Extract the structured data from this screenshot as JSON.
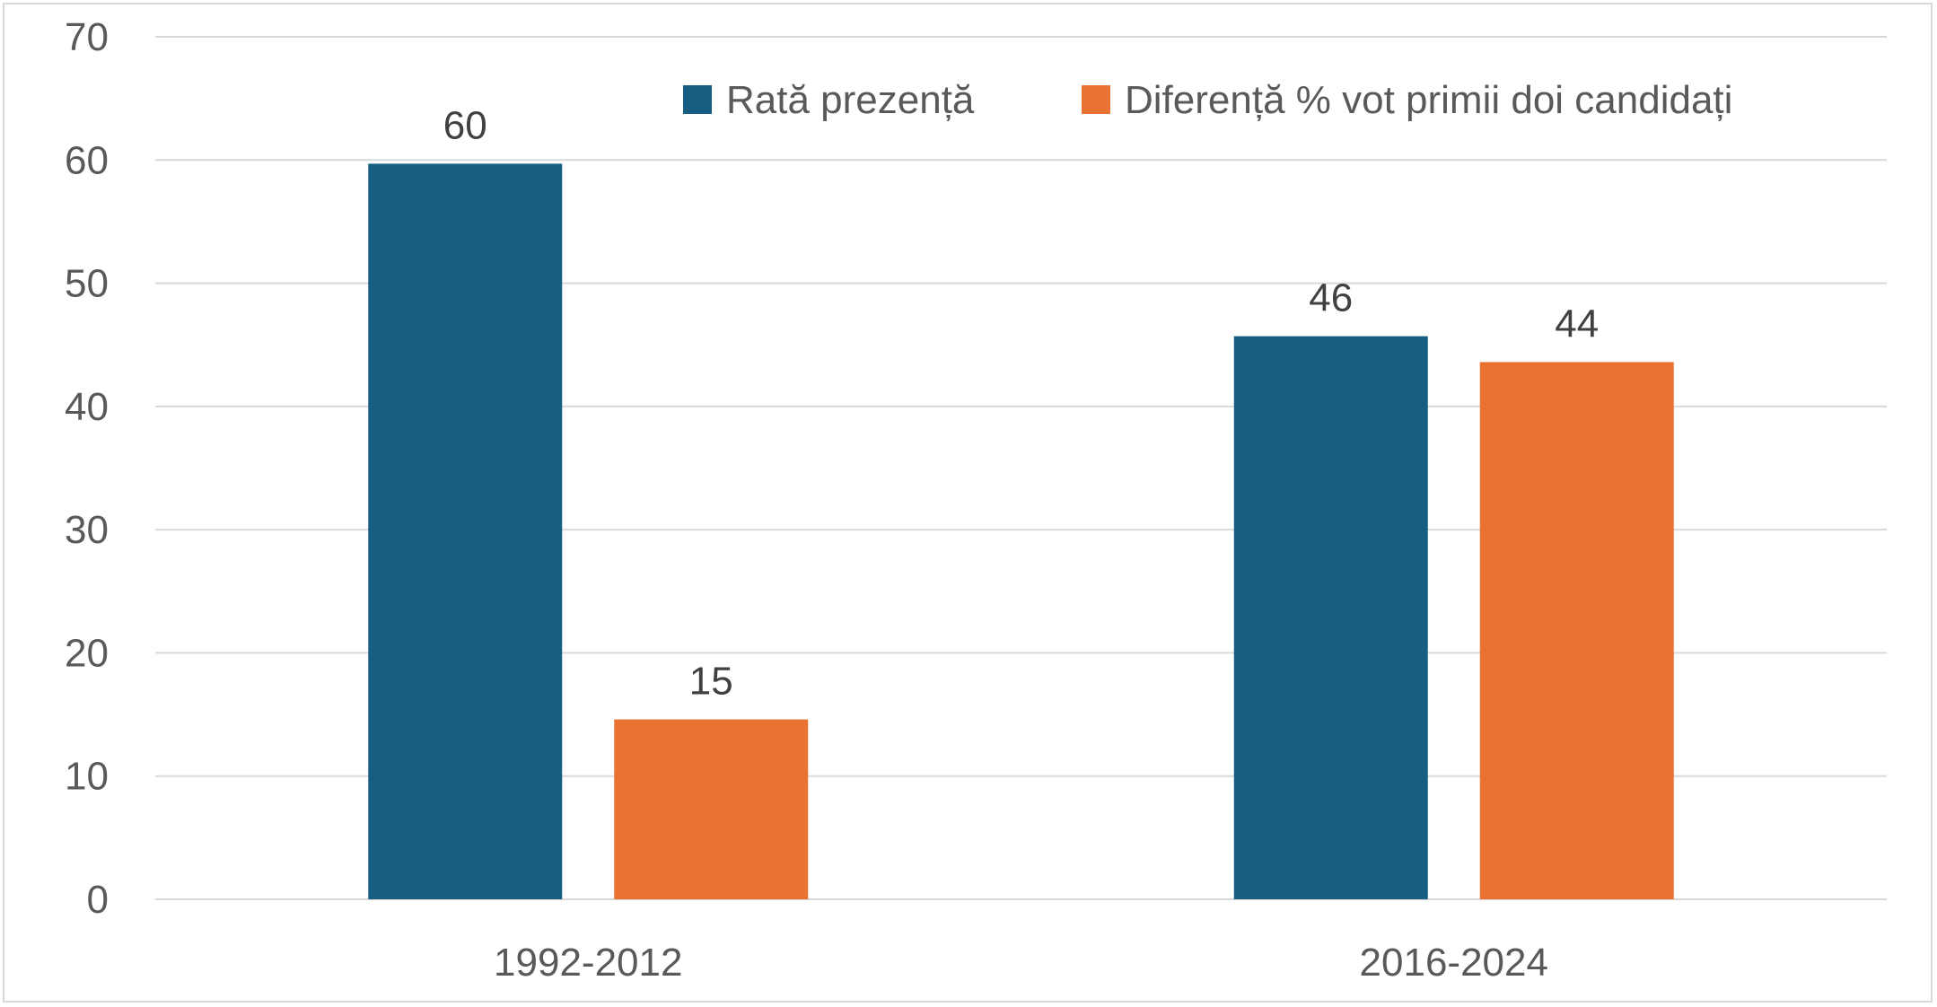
{
  "chart_data": {
    "type": "bar",
    "categories": [
      "1992-2012",
      "2016-2024"
    ],
    "series": [
      {
        "name": "Rată prezență",
        "values": [
          59.7,
          45.7
        ],
        "labels": [
          "60",
          "46"
        ],
        "color": "#175f82"
      },
      {
        "name": "Diferență % vot primii doi candidați",
        "values": [
          14.6,
          43.6
        ],
        "labels": [
          "15",
          "44"
        ],
        "color": "#e97132"
      }
    ],
    "ylim": [
      0,
      70
    ],
    "yticks": [
      0,
      10,
      20,
      30,
      40,
      50,
      60,
      70
    ],
    "grid": true,
    "legend_position": "top-right",
    "colors": {
      "gridline": "#d9d9d9",
      "tick_text": "#595959",
      "label_text": "#404040"
    }
  }
}
